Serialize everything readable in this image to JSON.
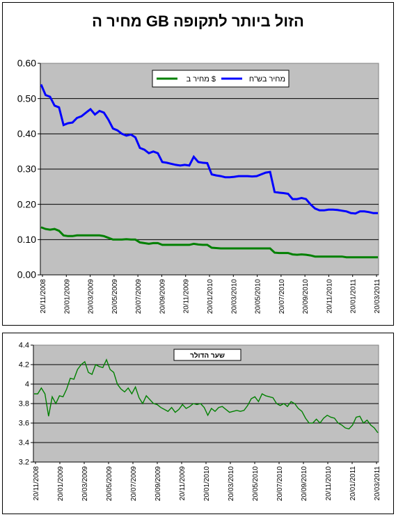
{
  "chart_data": [
    {
      "type": "line",
      "title": "מחיר ה GB הזול ביותר לתקופה",
      "xlabel": "",
      "ylabel": "",
      "ylim": [
        0,
        0.6
      ],
      "yticks": [
        "0.00",
        "0.10",
        "0.20",
        "0.30",
        "0.40",
        "0.50",
        "0.60"
      ],
      "xticks": [
        "20/11/2008",
        "20/01/2009",
        "20/03/2009",
        "20/05/2009",
        "20/07/2009",
        "20/09/2009",
        "20/11/2009",
        "20/01/2010",
        "20/03/2010",
        "20/05/2010",
        "20/07/2010",
        "20/09/2010",
        "20/11/2010",
        "20/01/2011",
        "20/03/2011"
      ],
      "grid": true,
      "legend_position": "top-right",
      "colors": {
        "blue": "#0000ff",
        "green": "#008000",
        "plot_bg": "#c0c0c0"
      },
      "series": [
        {
          "name": "מחיר בש\"ח",
          "color": "#0000ff",
          "values": [
            0.54,
            0.51,
            0.505,
            0.48,
            0.475,
            0.425,
            0.43,
            0.432,
            0.445,
            0.45,
            0.46,
            0.47,
            0.455,
            0.465,
            0.46,
            0.44,
            0.415,
            0.41,
            0.4,
            0.395,
            0.398,
            0.39,
            0.36,
            0.355,
            0.345,
            0.35,
            0.345,
            0.32,
            0.318,
            0.315,
            0.312,
            0.31,
            0.312,
            0.31,
            0.335,
            0.32,
            0.318,
            0.317,
            0.285,
            0.282,
            0.28,
            0.277,
            0.277,
            0.278,
            0.28,
            0.28,
            0.28,
            0.279,
            0.28,
            0.285,
            0.29,
            0.292,
            0.235,
            0.233,
            0.232,
            0.23,
            0.215,
            0.215,
            0.218,
            0.215,
            0.2,
            0.188,
            0.183,
            0.183,
            0.185,
            0.185,
            0.184,
            0.182,
            0.18,
            0.175,
            0.174,
            0.18,
            0.18,
            0.178,
            0.175,
            0.175
          ]
        },
        {
          "name": "מחיר ב $",
          "color": "#008000",
          "values": [
            0.135,
            0.13,
            0.128,
            0.13,
            0.125,
            0.112,
            0.11,
            0.11,
            0.112,
            0.112,
            0.112,
            0.112,
            0.112,
            0.112,
            0.11,
            0.105,
            0.1,
            0.1,
            0.1,
            0.101,
            0.1,
            0.1,
            0.092,
            0.09,
            0.088,
            0.09,
            0.09,
            0.085,
            0.085,
            0.085,
            0.085,
            0.085,
            0.085,
            0.085,
            0.088,
            0.086,
            0.085,
            0.085,
            0.077,
            0.076,
            0.075,
            0.075,
            0.075,
            0.075,
            0.075,
            0.075,
            0.075,
            0.075,
            0.075,
            0.075,
            0.075,
            0.075,
            0.063,
            0.062,
            0.062,
            0.062,
            0.058,
            0.057,
            0.058,
            0.057,
            0.055,
            0.052,
            0.052,
            0.052,
            0.052,
            0.052,
            0.052,
            0.052,
            0.05,
            0.05,
            0.05,
            0.05,
            0.05,
            0.05,
            0.05,
            0.05
          ]
        }
      ]
    },
    {
      "type": "line",
      "title": "",
      "legend_label": "שער הדולר",
      "xlabel": "",
      "ylabel": "",
      "ylim": [
        3.2,
        4.4
      ],
      "yticks": [
        "3.2",
        "3.4",
        "3.6",
        "3.8",
        "4",
        "4.2",
        "4.4"
      ],
      "xticks": [
        "20/11/2008",
        "20/01/2009",
        "20/03/2009",
        "20/05/2009",
        "20/07/2009",
        "20/09/2009",
        "20/11/2009",
        "20/01/2010",
        "20/03/2010",
        "20/05/2010",
        "20/07/2010",
        "20/09/2010",
        "20/11/2010",
        "20/01/2011",
        "20/03/2011"
      ],
      "grid": true,
      "legend_position": "top-left",
      "colors": {
        "line": "#008000",
        "plot_bg": "#c0c0c0"
      },
      "series": [
        {
          "name": "שער הדולר",
          "color": "#008000",
          "values": [
            3.9,
            3.9,
            3.96,
            3.9,
            3.67,
            3.87,
            3.8,
            3.88,
            3.87,
            3.95,
            4.06,
            4.05,
            4.15,
            4.2,
            4.23,
            4.12,
            4.1,
            4.2,
            4.18,
            4.17,
            4.25,
            4.15,
            4.12,
            4.0,
            3.95,
            3.92,
            3.96,
            3.9,
            3.97,
            3.86,
            3.8,
            3.88,
            3.84,
            3.8,
            3.79,
            3.76,
            3.74,
            3.72,
            3.76,
            3.71,
            3.74,
            3.79,
            3.75,
            3.77,
            3.8,
            3.79,
            3.8,
            3.76,
            3.68,
            3.75,
            3.72,
            3.76,
            3.77,
            3.74,
            3.71,
            3.72,
            3.73,
            3.72,
            3.73,
            3.78,
            3.85,
            3.87,
            3.82,
            3.9,
            3.88,
            3.87,
            3.86,
            3.8,
            3.78,
            3.8,
            3.77,
            3.82,
            3.8,
            3.75,
            3.72,
            3.65,
            3.6,
            3.6,
            3.64,
            3.6,
            3.65,
            3.68,
            3.66,
            3.65,
            3.6,
            3.58,
            3.55,
            3.54,
            3.58,
            3.66,
            3.67,
            3.6,
            3.63,
            3.58,
            3.55,
            3.5
          ]
        }
      ]
    }
  ]
}
